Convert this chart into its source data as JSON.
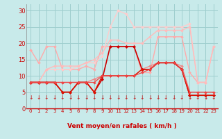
{
  "xlabel": "Vent moyen/en rafales ( km/h )",
  "xlim": [
    -0.5,
    23.5
  ],
  "ylim": [
    0,
    32
  ],
  "yticks": [
    0,
    5,
    10,
    15,
    20,
    25,
    30
  ],
  "xticks": [
    0,
    1,
    2,
    3,
    4,
    5,
    6,
    7,
    8,
    9,
    10,
    11,
    12,
    13,
    14,
    15,
    16,
    17,
    18,
    19,
    20,
    21,
    22,
    23
  ],
  "bg_color": "#c8eaea",
  "grid_color": "#9ecece",
  "lines": [
    {
      "x": [
        0,
        1,
        2,
        3,
        4,
        5,
        6,
        7,
        8,
        9,
        10,
        11,
        12,
        13,
        14,
        15,
        16,
        17,
        18,
        19,
        20,
        21,
        22,
        23
      ],
      "y": [
        18,
        14,
        19,
        19,
        12,
        12,
        12,
        13,
        12,
        19,
        19,
        19,
        19,
        19,
        11,
        11,
        22,
        22,
        22,
        22,
        11,
        8,
        8,
        19
      ],
      "color": "#ffaaaa",
      "lw": 1.0,
      "marker": "D",
      "ms": 2.0
    },
    {
      "x": [
        0,
        1,
        2,
        3,
        4,
        5,
        6,
        7,
        8,
        9,
        10,
        11,
        12,
        13,
        14,
        15,
        16,
        17,
        18,
        19,
        20,
        21,
        22,
        23
      ],
      "y": [
        8,
        8,
        12,
        12,
        12,
        12,
        13,
        14,
        14,
        16,
        25,
        30,
        29,
        25,
        25,
        25,
        25,
        25,
        25,
        25,
        26,
        8,
        8,
        19
      ],
      "color": "#ffcccc",
      "lw": 1.0,
      "marker": "D",
      "ms": 2.0
    },
    {
      "x": [
        0,
        1,
        2,
        3,
        4,
        5,
        6,
        7,
        8,
        9,
        10,
        11,
        12,
        13,
        14,
        15,
        16,
        17,
        18,
        19,
        20,
        21,
        22,
        23
      ],
      "y": [
        8,
        8,
        12,
        13,
        13,
        13,
        13,
        14,
        15,
        17,
        21,
        21,
        20,
        20,
        20,
        22,
        24,
        24,
        24,
        24,
        25,
        8,
        8,
        19
      ],
      "color": "#ffbbbb",
      "lw": 1.0,
      "marker": "D",
      "ms": 2.0
    },
    {
      "x": [
        0,
        1,
        2,
        3,
        4,
        5,
        6,
        7,
        8,
        9,
        10,
        11,
        12,
        13,
        14,
        15,
        16,
        17,
        18,
        19,
        20,
        21,
        22,
        23
      ],
      "y": [
        8,
        8,
        8,
        8,
        8,
        8,
        8,
        8,
        9,
        10,
        10,
        10,
        10,
        10,
        12,
        13,
        14,
        14,
        14,
        13,
        5,
        5,
        5,
        5
      ],
      "color": "#ee8888",
      "lw": 1.0,
      "marker": "D",
      "ms": 2.0
    },
    {
      "x": [
        0,
        1,
        2,
        3,
        4,
        5,
        6,
        7,
        8,
        9,
        10,
        11,
        12,
        13,
        14,
        15,
        16,
        17,
        18,
        19,
        20,
        21,
        22,
        23
      ],
      "y": [
        8,
        8,
        8,
        8,
        5,
        5,
        8,
        8,
        5,
        9,
        19,
        19,
        19,
        19,
        12,
        12,
        14,
        14,
        14,
        12,
        4,
        4,
        4,
        4
      ],
      "color": "#cc0000",
      "lw": 1.2,
      "marker": "D",
      "ms": 2.2
    },
    {
      "x": [
        0,
        1,
        2,
        3,
        4,
        5,
        6,
        7,
        8,
        9,
        10,
        11,
        12,
        13,
        14,
        15,
        16,
        17,
        18,
        19,
        20,
        21,
        22,
        23
      ],
      "y": [
        8,
        8,
        8,
        8,
        5,
        5,
        8,
        8,
        5,
        10,
        10,
        10,
        10,
        10,
        12,
        12,
        14,
        14,
        14,
        12,
        4,
        4,
        4,
        4
      ],
      "color": "#dd1100",
      "lw": 1.0,
      "marker": "D",
      "ms": 1.8
    },
    {
      "x": [
        0,
        1,
        2,
        3,
        4,
        5,
        6,
        7,
        8,
        9,
        10,
        11,
        12,
        13,
        14,
        15,
        16,
        17,
        18,
        19,
        20,
        21,
        22,
        23
      ],
      "y": [
        8,
        8,
        8,
        8,
        8,
        8,
        8,
        8,
        8,
        10,
        10,
        10,
        10,
        10,
        11,
        12,
        14,
        14,
        14,
        12,
        5,
        5,
        5,
        5
      ],
      "color": "#ee4444",
      "lw": 0.9,
      "marker": "D",
      "ms": 1.8
    }
  ],
  "arrow_color": "#cc0000",
  "tick_color": "#cc0000",
  "xlabel_color": "#cc0000",
  "xlabel_fontsize": 6.5,
  "xlabel_fontweight": "bold",
  "ytick_fontsize": 6,
  "xtick_fontsize": 5
}
